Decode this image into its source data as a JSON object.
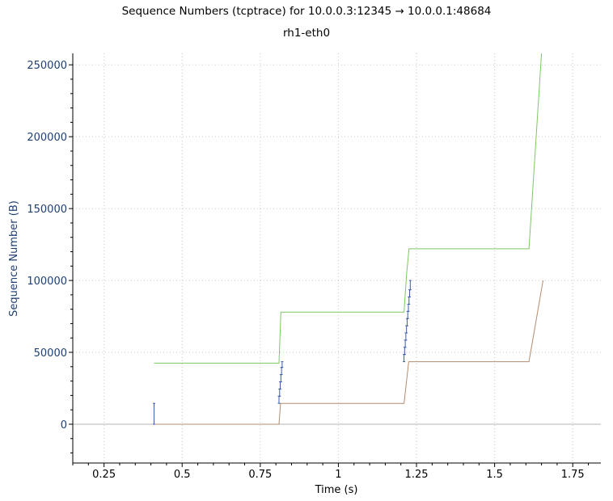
{
  "window": {
    "title": "Sequence Numbers (tcptrace) for 10.0.0.3:12345 → 10.0.0.1:48684",
    "subtitle": "rh1-eth0"
  },
  "colors": {
    "background": "#ffffff",
    "grid": "#c8c8c8",
    "axis": "#000000",
    "ytick_text": "#1f3f73",
    "ylabel_text": "#1f3f73",
    "sequence_segments": "#3b5ca8",
    "receive_window": "#7cc864",
    "ack_line": "#b48c6e",
    "zero_line": "#b4b4b4"
  },
  "chart_data": {
    "type": "line",
    "title": "Sequence Numbers (tcptrace) for 10.0.0.3:12345 → 10.0.0.1:48684",
    "subtitle": "rh1-eth0",
    "xlabel": "Time (s)",
    "ylabel": "Sequence Number (B)",
    "xlim": [
      0.15,
      1.84
    ],
    "ylim": [
      -27000,
      258000
    ],
    "x_ticks": [
      0.25,
      0.5,
      0.75,
      1,
      1.25,
      1.5,
      1.75
    ],
    "x_tick_labels": [
      "0.25",
      "0.5",
      "0.75",
      "1",
      "1.25",
      "1.5",
      "1.75"
    ],
    "y_ticks": [
      0,
      50000,
      100000,
      150000,
      200000,
      250000
    ],
    "y_tick_labels": [
      "0",
      "50000",
      "100000",
      "150000",
      "200000",
      "250000"
    ],
    "grid": true,
    "zero_line": true,
    "series": [
      {
        "kind": "receive_window",
        "points": [
          [
            0.41,
            42500
          ],
          [
            0.81,
            42500
          ],
          [
            0.816,
            78000
          ],
          [
            1.21,
            78000
          ],
          [
            1.218,
            104000
          ],
          [
            1.226,
            122000
          ],
          [
            1.61,
            122000
          ],
          [
            1.65,
            258000
          ]
        ]
      },
      {
        "kind": "ack",
        "points": [
          [
            0.41,
            0
          ],
          [
            0.81,
            0
          ],
          [
            0.815,
            14500
          ],
          [
            1.21,
            14500
          ],
          [
            1.225,
            43500
          ],
          [
            1.61,
            43500
          ],
          [
            1.655,
            100000
          ]
        ]
      },
      {
        "kind": "segments",
        "segments": [
          [
            0.41,
            0,
            14500
          ],
          [
            0.81,
            14500,
            19500
          ],
          [
            0.812,
            19500,
            24500
          ],
          [
            0.814,
            24500,
            29500
          ],
          [
            0.816,
            29500,
            34500
          ],
          [
            0.818,
            34500,
            39500
          ],
          [
            0.82,
            39500,
            43500
          ],
          [
            1.21,
            43500,
            48500
          ],
          [
            1.212,
            48500,
            53500
          ],
          [
            1.214,
            53500,
            58500
          ],
          [
            1.216,
            58500,
            63500
          ],
          [
            1.218,
            63500,
            68500
          ],
          [
            1.22,
            68500,
            73500
          ],
          [
            1.222,
            73500,
            78500
          ],
          [
            1.224,
            78500,
            83500
          ],
          [
            1.226,
            83500,
            88500
          ],
          [
            1.228,
            88500,
            93500
          ],
          [
            1.23,
            93500,
            100000
          ]
        ]
      }
    ]
  }
}
